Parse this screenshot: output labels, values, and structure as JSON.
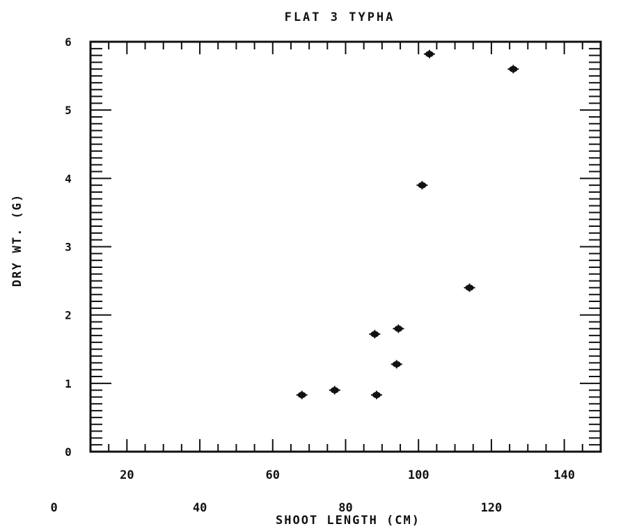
{
  "chart_data": {
    "type": "scatter",
    "title": "FLAT 3 TYPHA",
    "xlabel": "SHOOT LENGTH (CM)",
    "ylabel": "DRY WT. (G)",
    "xlim": [
      10,
      150
    ],
    "ylim": [
      0,
      6
    ],
    "x_ticks_upper": [
      "20",
      "60",
      "100",
      "140"
    ],
    "x_ticks_lower": [
      "0",
      "40",
      "80",
      "120"
    ],
    "y_ticks": [
      "0",
      "1",
      "2",
      "3",
      "4",
      "5",
      "6"
    ],
    "grid": false,
    "marker_color": "#111111",
    "series": [
      {
        "points": [
          {
            "x": 68,
            "y": 0.83
          },
          {
            "x": 77,
            "y": 0.9
          },
          {
            "x": 88,
            "y": 1.72
          },
          {
            "x": 88.5,
            "y": 0.83
          },
          {
            "x": 94,
            "y": 1.28
          },
          {
            "x": 94.5,
            "y": 1.8
          },
          {
            "x": 101,
            "y": 3.9
          },
          {
            "x": 103,
            "y": 5.82
          },
          {
            "x": 114,
            "y": 2.4
          },
          {
            "x": 126,
            "y": 5.6
          }
        ]
      }
    ]
  }
}
